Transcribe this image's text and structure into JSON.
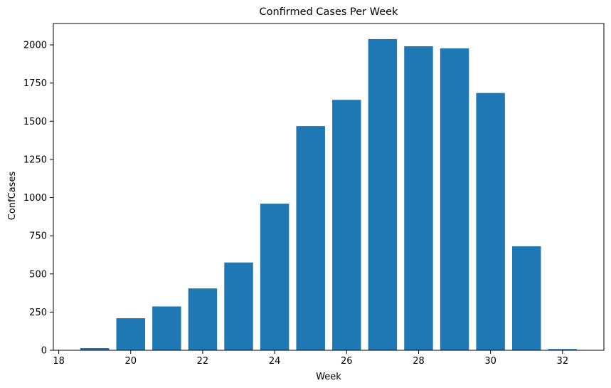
{
  "chart_data": {
    "type": "bar",
    "title": "Confirmed Cases Per Week",
    "xlabel": "Week",
    "ylabel": "ConfCases",
    "x": [
      19,
      20,
      21,
      22,
      23,
      24,
      25,
      26,
      27,
      28,
      29,
      30,
      31,
      32
    ],
    "values": [
      14,
      210,
      287,
      405,
      575,
      960,
      1468,
      1640,
      2038,
      1991,
      1977,
      1685,
      681,
      8
    ],
    "xlim": [
      17.85,
      33.15
    ],
    "ylim": [
      0,
      2140
    ],
    "xticks": [
      18,
      20,
      22,
      24,
      26,
      28,
      30,
      32
    ],
    "yticks": [
      0,
      250,
      500,
      750,
      1000,
      1250,
      1500,
      1750,
      2000
    ],
    "bar_color": "#1f77b4",
    "grid": false,
    "legend": "none"
  }
}
